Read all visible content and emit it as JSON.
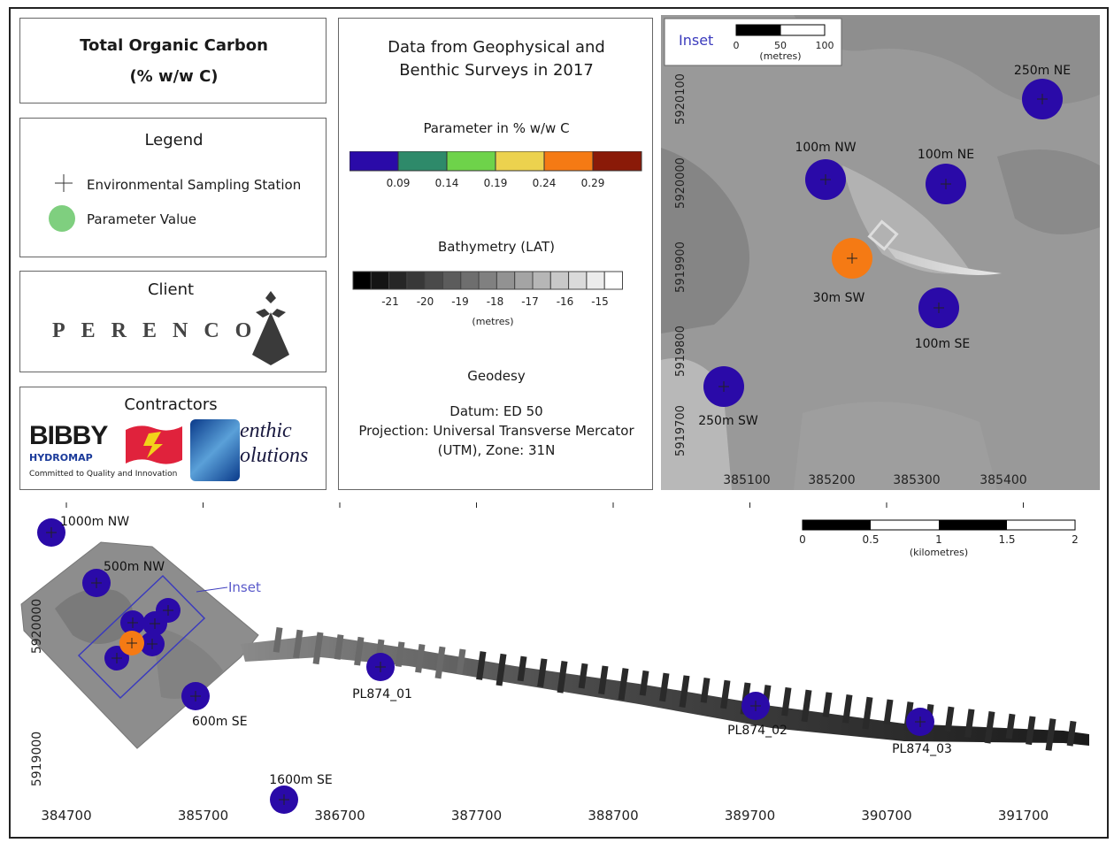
{
  "title_box": {
    "line1": "Total Organic Carbon",
    "line2": "(% w/w C)"
  },
  "legend": {
    "heading": "Legend",
    "station_label": "Environmental Sampling Station",
    "value_label": "Parameter Value",
    "value_color": "#7fcf7f"
  },
  "client": {
    "heading": "Client",
    "name": "PERENCO"
  },
  "contractors": {
    "heading": "Contractors",
    "bibby": "BIBBY",
    "hydromap": "HYDROMAP",
    "tagline": "Committed to Quality and Innovation",
    "benthic_1": "enthic",
    "benthic_2": "olutions"
  },
  "info": {
    "title_line1": "Data from Geophysical and",
    "title_line2": "Benthic Surveys in 2017",
    "param_heading": "Parameter in  % w/w C",
    "param_colors": [
      "#2a0aa8",
      "#2e8a6a",
      "#6ed34a",
      "#ecd24e",
      "#f57a14",
      "#8a1a08"
    ],
    "param_ticks": [
      "0.09",
      "0.14",
      "0.19",
      "0.24",
      "0.29"
    ],
    "bathy_heading": "Bathymetry (LAT)",
    "bathy_colors": [
      "#000000",
      "#141414",
      "#262626",
      "#383838",
      "#4a4a4a",
      "#5c5c5c",
      "#6e6e6e",
      "#808080",
      "#929292",
      "#a4a4a4",
      "#b6b6b6",
      "#c8c8c8",
      "#dadada",
      "#ececec",
      "#ffffff"
    ],
    "bathy_ticks": [
      "-21",
      "-20",
      "-19",
      "-18",
      "-17",
      "-16",
      "-15"
    ],
    "bathy_unit": "(metres)",
    "geodesy_heading": "Geodesy",
    "datum": "Datum: ED 50",
    "projection": "Projection: Universal Transverse Mercator",
    "zone": "(UTM),  Zone: 31N"
  },
  "inset_map": {
    "label": "Inset",
    "scale_ticks": [
      "0",
      "50",
      "100"
    ],
    "scale_unit": "(metres)",
    "y_ticks": [
      "5920100",
      "5920000",
      "5919900",
      "5919800",
      "5919700"
    ],
    "x_ticks": [
      "385100",
      "385200",
      "385300",
      "385400"
    ],
    "stations": [
      {
        "label": "250m NE",
        "color": "#2a0aa8"
      },
      {
        "label": "100m NW",
        "color": "#2a0aa8"
      },
      {
        "label": "100m NE",
        "color": "#2a0aa8"
      },
      {
        "label": "30m SW",
        "color": "#f57a14"
      },
      {
        "label": "100m SE",
        "color": "#2a0aa8"
      },
      {
        "label": "250m SW",
        "color": "#2a0aa8"
      }
    ]
  },
  "main_map": {
    "inset_label": "Inset",
    "scale_ticks": [
      "0",
      "0.5",
      "1",
      "1.5",
      "2"
    ],
    "scale_unit": "(kilometres)",
    "y_ticks": [
      "5920000",
      "5919000"
    ],
    "x_ticks": [
      "384700",
      "385700",
      "386700",
      "387700",
      "388700",
      "389700",
      "390700",
      "391700"
    ],
    "stations": [
      {
        "label": "1000m NW",
        "color": "#2a0aa8"
      },
      {
        "label": "500m NW",
        "color": "#2a0aa8"
      },
      {
        "label": "600m SE",
        "color": "#2a0aa8"
      },
      {
        "label": "1600m SE",
        "color": "#2a0aa8"
      },
      {
        "label": "PL874_01",
        "color": "#2a0aa8"
      },
      {
        "label": "PL874_02",
        "color": "#2a0aa8"
      },
      {
        "label": "PL874_03",
        "color": "#2a0aa8"
      }
    ]
  }
}
